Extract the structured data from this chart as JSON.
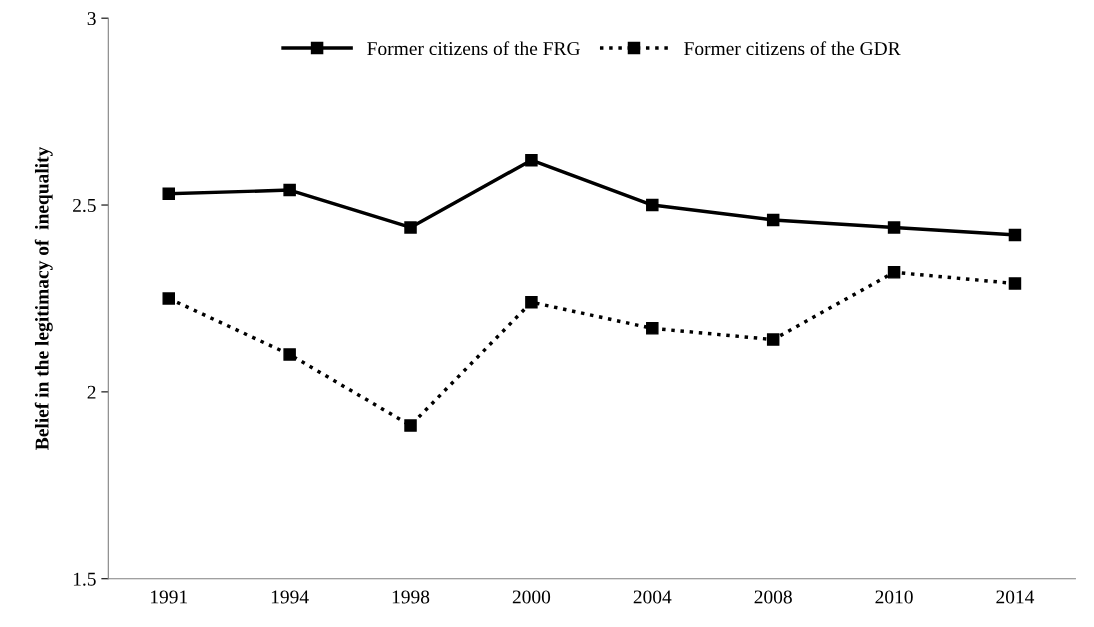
{
  "chart_data": {
    "type": "line",
    "ylabel": "Belief in the legitimacy of  inequality",
    "categories": [
      "1991",
      "1994",
      "1998",
      "2000",
      "2004",
      "2008",
      "2010",
      "2014"
    ],
    "series": [
      {
        "name": "Former citizens of the FRG",
        "color": "#000000",
        "line_style": "solid",
        "values": [
          2.53,
          2.54,
          2.44,
          2.62,
          2.5,
          2.46,
          2.44,
          2.42
        ]
      },
      {
        "name": "Former citizens of the GDR",
        "color": "#000000",
        "line_style": "dotted",
        "values": [
          2.25,
          2.1,
          1.91,
          2.24,
          2.17,
          2.14,
          2.32,
          2.29
        ]
      }
    ],
    "ylim": [
      1.5,
      3
    ],
    "yticks": [
      1.5,
      2,
      2.5,
      3
    ],
    "marker": "square",
    "grid": false,
    "legend": "top"
  }
}
